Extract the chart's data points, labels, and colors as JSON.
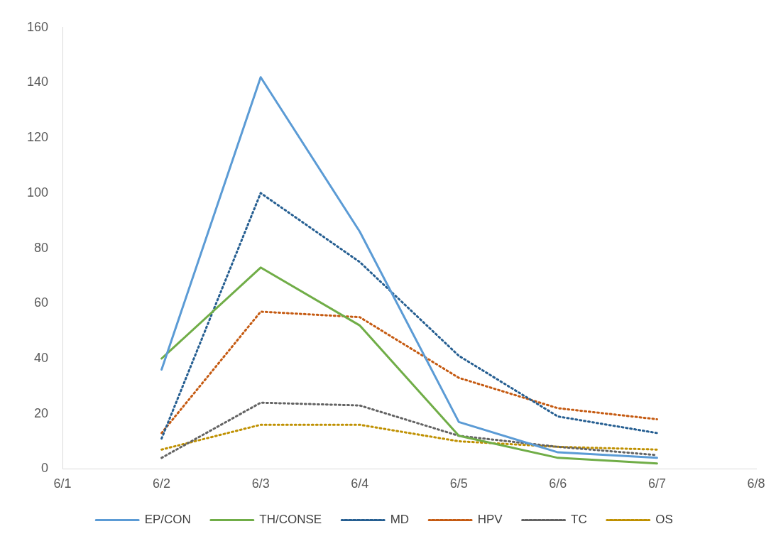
{
  "chart_data": {
    "type": "line",
    "x": [
      "--06-02",
      "--06-03",
      "--06-04",
      "--06-05",
      "--06-06",
      "--06-07"
    ],
    "series": [
      {
        "name": "EP/CON",
        "color": "#5b9bd5",
        "line_style": "solid",
        "values": [
          36,
          142,
          86,
          17,
          6,
          4
        ]
      },
      {
        "name": "TH/CONSE",
        "color": "#70ad47",
        "line_style": "solid",
        "values": [
          40,
          73,
          52,
          12,
          4,
          2
        ]
      },
      {
        "name": "MD",
        "color": "#255e91",
        "line_style": "dotted",
        "values": [
          11,
          100,
          75,
          41,
          19,
          13
        ]
      },
      {
        "name": "HPV",
        "color": "#c55a11",
        "line_style": "dotted",
        "values": [
          13,
          57,
          55,
          33,
          22,
          18
        ]
      },
      {
        "name": "TC",
        "color": "#636363",
        "line_style": "dotted",
        "values": [
          4,
          24,
          23,
          12,
          8,
          5
        ]
      },
      {
        "name": "OS",
        "color": "#bf9000",
        "line_style": "dotted",
        "values": [
          7,
          16,
          16,
          10,
          8,
          7
        ]
      }
    ],
    "xlim": [
      "--06-01",
      "--06-08"
    ],
    "xticks": [
      {
        "value": "--06-01",
        "label": "6/1"
      },
      {
        "value": "--06-02",
        "label": "6/2"
      },
      {
        "value": "--06-03",
        "label": "6/3"
      },
      {
        "value": "--06-04",
        "label": "6/4"
      },
      {
        "value": "--06-05",
        "label": "6/5"
      },
      {
        "value": "--06-06",
        "label": "6/6"
      },
      {
        "value": "--06-07",
        "label": "6/7"
      },
      {
        "value": "--06-08",
        "label": "6/8"
      }
    ],
    "ylim": [
      0,
      160
    ],
    "yticks": [
      0,
      20,
      40,
      60,
      80,
      100,
      120,
      140,
      160
    ],
    "grid": false,
    "legend": "bottom"
  }
}
